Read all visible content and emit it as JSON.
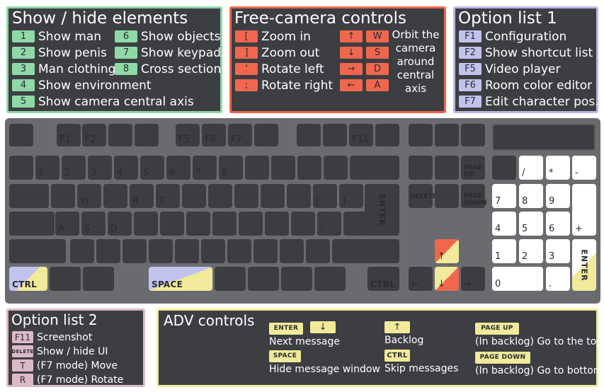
{
  "panels": {
    "show_hide": {
      "title": "Show / hide elements",
      "col1": [
        {
          "key": "1",
          "label": "Show man"
        },
        {
          "key": "2",
          "label": "Show penis"
        },
        {
          "key": "3",
          "label": "Man clothing"
        },
        {
          "key": "4",
          "label": "Show environment"
        },
        {
          "key": "5",
          "label": "Show camera central axis"
        }
      ],
      "col2": [
        {
          "key": "6",
          "label": "Show objects"
        },
        {
          "key": "7",
          "label": "Show keypad"
        },
        {
          "key": "8",
          "label": "Cross section"
        }
      ]
    },
    "free_camera": {
      "title": "Free-camera controls",
      "rows": [
        {
          "key": "[",
          "label": "Zoom in"
        },
        {
          "key": "]",
          "label": "Zoom out"
        },
        {
          "key": "'",
          "label": "Rotate left"
        },
        {
          "key": ";",
          "label": "Rotate right"
        }
      ],
      "orbit_keys": [
        {
          "arrow": "↑",
          "letter": "W"
        },
        {
          "arrow": "↓",
          "letter": "S"
        },
        {
          "arrow": "→",
          "letter": "D"
        },
        {
          "arrow": "←",
          "letter": "A"
        }
      ],
      "orbit_label": [
        "Orbit the",
        "camera",
        "around",
        "central",
        "axis"
      ]
    },
    "option1": {
      "title": "Option list 1",
      "rows": [
        {
          "key": "F1",
          "label": "Configuration"
        },
        {
          "key": "F2",
          "label": "Show shortcut list"
        },
        {
          "key": "F5",
          "label": "Video player"
        },
        {
          "key": "F6",
          "label": "Room color editor"
        },
        {
          "key": "F7",
          "label": "Edit character pos."
        }
      ]
    },
    "option2": {
      "title": "Option list 2",
      "rows": [
        {
          "key": "F11",
          "label": "Screenshot"
        },
        {
          "key": "DELETE",
          "label": "Show / hide UI"
        },
        {
          "key": "T",
          "label": "(F7 mode) Move"
        },
        {
          "key": "R",
          "label": "(F7 mode) Rotate"
        }
      ]
    },
    "adv": {
      "title": "ADV controls",
      "next": {
        "keys": [
          "ENTER",
          "↓"
        ],
        "label": "Next message"
      },
      "hide": {
        "keys": [
          "SPACE"
        ],
        "label": "Hide message window"
      },
      "backlog": {
        "keys": [
          "↑"
        ],
        "label": "Backlog"
      },
      "skip": {
        "keys": [
          "CTRL"
        ],
        "label": "Skip messages"
      },
      "top": {
        "keys": [
          "PAGE UP"
        ],
        "label": "(In backlog) Go to the top"
      },
      "bottom": {
        "keys": [
          "PAGE DOWN"
        ],
        "label": "(In backlog) Go to bottom"
      }
    }
  },
  "keyboard": {
    "fkeys": {
      "f1": "F1",
      "f2": "F2",
      "f5": "F5",
      "f6": "F6",
      "f7": "F7",
      "f11": "F11"
    },
    "digits": [
      "1",
      "2",
      "3",
      "4",
      "5",
      "6",
      "7",
      "8"
    ],
    "letters": {
      "w": "W",
      "r": "R",
      "t": "T",
      "a": "A",
      "s": "S",
      "d": "D"
    },
    "punct": {
      "lbracket": "[",
      "rbracket": "]",
      "semicolon": ";",
      "quote": "'"
    },
    "mods": {
      "enter": "ENTER",
      "ctrl_left": "CTRL",
      "space": "SPACE",
      "ctrl_right": "CTRL"
    },
    "nav": {
      "page_up": "PAGE UP",
      "page_down": "PAGE DOWN",
      "delete": "DELETE"
    },
    "arrows": {
      "up": "↑",
      "left": "←",
      "down": "↓",
      "right": "→"
    },
    "numpad": {
      "slash": "/",
      "star": "*",
      "minus": "-",
      "plus": "+",
      "enter": "ENTER",
      "n7": "7",
      "n8": "8",
      "n9": "9",
      "n4": "4",
      "n5": "5",
      "n6": "6",
      "n1": "1",
      "n2": "2",
      "n3": "3",
      "n0": "0",
      "dot": "."
    }
  },
  "colors": {
    "panel_bg": "#3d3e42",
    "green": "#8fd9a6",
    "blue": "#c2c3ed",
    "orange": "#f0674e",
    "pink": "#dcb9c6",
    "yellow": "#f0ea9a",
    "keyboard_bg": "#6a6b6e",
    "key_dark": "#3c3d41"
  }
}
